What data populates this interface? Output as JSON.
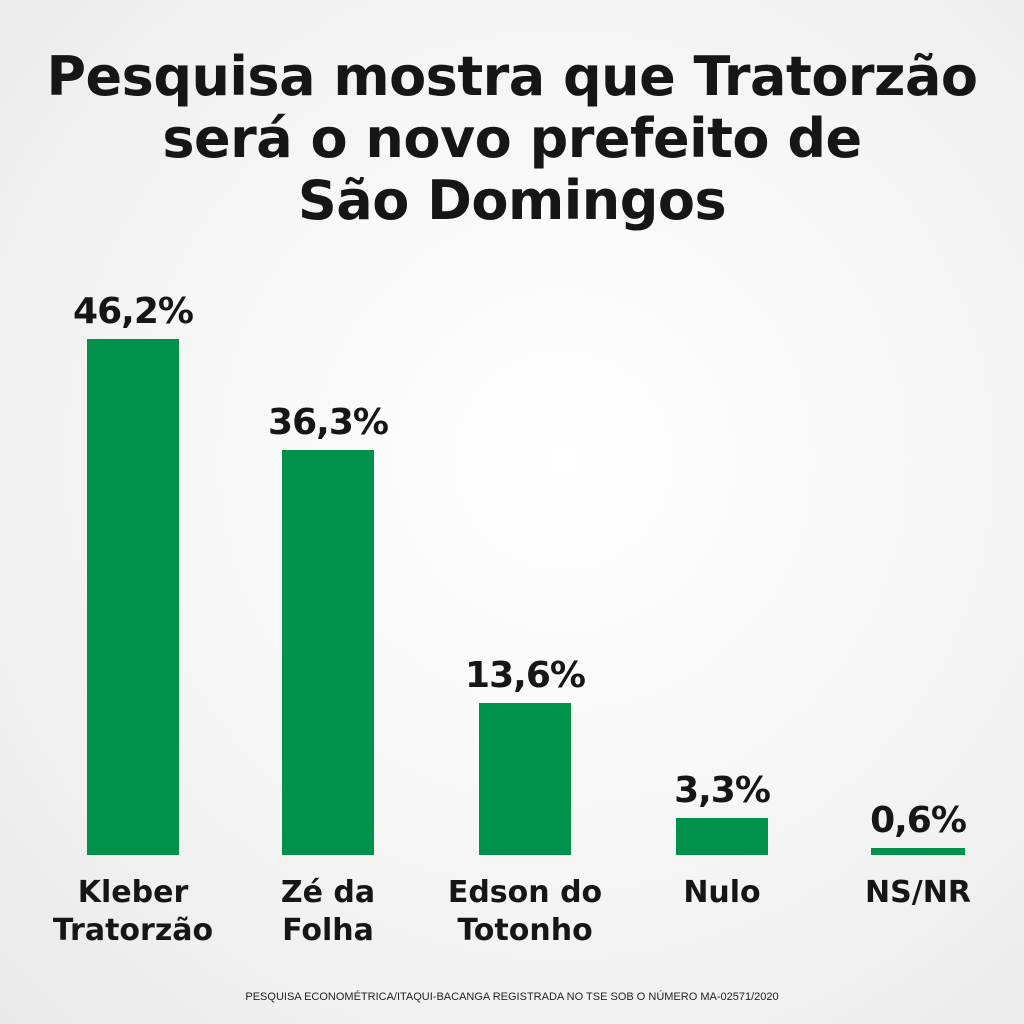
{
  "title_lines": [
    "Pesquisa mostra que Tratorzão",
    "será o novo prefeito de",
    "São Domingos"
  ],
  "footnote": "PESQUISA ECONOMÉTRICA/ITAQUI-BACANGA REGISTRADA NO TSE SOB O NÚMERO MA-02571/2020",
  "colors": {
    "bar": "#00914a",
    "text": "#161616"
  },
  "chart_data": {
    "type": "bar",
    "title": "Pesquisa mostra que Tratorzão será o novo prefeito de São Domingos",
    "categories": [
      [
        "Kleber",
        "Tratorzão"
      ],
      [
        "Zé da",
        "Folha"
      ],
      [
        "Edson do",
        "Totonho"
      ],
      [
        "Nulo"
      ],
      [
        "NS/NR"
      ]
    ],
    "values": [
      46.2,
      36.3,
      13.6,
      3.3,
      0.6
    ],
    "value_labels": [
      "46,2%",
      "36,3%",
      "13,6%",
      "3,3%",
      "0,6%"
    ],
    "unit": "%",
    "ylim": [
      0,
      46.2
    ],
    "grid": false,
    "legend": "none",
    "xlabel": "",
    "ylabel": ""
  }
}
